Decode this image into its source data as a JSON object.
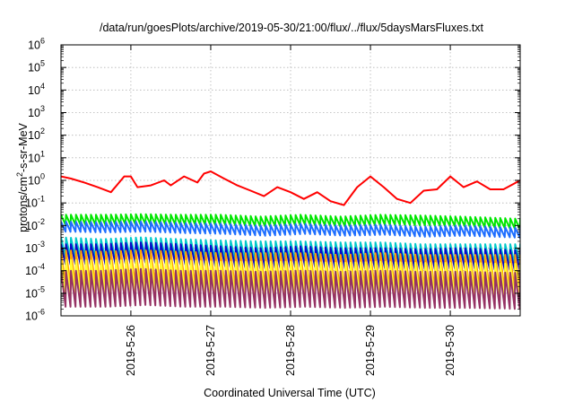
{
  "chart_data": {
    "type": "line",
    "title": "/data/run/goesPlots/archive/2019-05-30/21:00/flux/../flux/5daysMarsFluxes.txt",
    "xlabel": "Coordinated Universal Time (UTC)",
    "ylabel": {
      "base": "protons/cm",
      "sup": "2",
      "rest": "-s-sr-MeV"
    },
    "yscale": "log",
    "ylim": [
      1e-06,
      1000000.0
    ],
    "xlim": [
      "2019-05-25T03:00",
      "2019-05-30T21:00"
    ],
    "grid": true,
    "legend": "none",
    "y_ticks": [
      {
        "value": 1e-06,
        "base": "10",
        "exp": "-6"
      },
      {
        "value": 1e-05,
        "base": "10",
        "exp": "-5"
      },
      {
        "value": 0.0001,
        "base": "10",
        "exp": "-4"
      },
      {
        "value": 0.001,
        "base": "10",
        "exp": "-3"
      },
      {
        "value": 0.01,
        "base": "10",
        "exp": "-2"
      },
      {
        "value": 0.1,
        "base": "10",
        "exp": "-1"
      },
      {
        "value": 1.0,
        "base": "10",
        "exp": "0"
      },
      {
        "value": 10.0,
        "base": "10",
        "exp": "1"
      },
      {
        "value": 100.0,
        "base": "10",
        "exp": "2"
      },
      {
        "value": 1000.0,
        "base": "10",
        "exp": "3"
      },
      {
        "value": 10000.0,
        "base": "10",
        "exp": "4"
      },
      {
        "value": 100000.0,
        "base": "10",
        "exp": "5"
      },
      {
        "value": 1000000.0,
        "base": "10",
        "exp": "6"
      }
    ],
    "x_ticks": [
      {
        "value": "2019-05-26T00:00",
        "label": "2019-5-26"
      },
      {
        "value": "2019-05-27T00:00",
        "label": "2019-5-27"
      },
      {
        "value": "2019-05-28T00:00",
        "label": "2019-5-28"
      },
      {
        "value": "2019-05-29T00:00",
        "label": "2019-5-29"
      },
      {
        "value": "2019-05-30T00:00",
        "label": "2019-5-30"
      }
    ],
    "series": [
      {
        "color": "#ff0000",
        "x": [
          "2019-05-25T03:00",
          "2019-05-25T06:00",
          "2019-05-25T10:00",
          "2019-05-25T14:00",
          "2019-05-25T18:00",
          "2019-05-25T22:00",
          "2019-05-26T00:00",
          "2019-05-26T02:00",
          "2019-05-26T06:00",
          "2019-05-26T10:00",
          "2019-05-26T12:00",
          "2019-05-26T16:00",
          "2019-05-26T20:00",
          "2019-05-26T22:00",
          "2019-05-27T00:00",
          "2019-05-27T04:00",
          "2019-05-27T08:00",
          "2019-05-27T12:00",
          "2019-05-27T16:00",
          "2019-05-27T20:00",
          "2019-05-28T00:00",
          "2019-05-28T04:00",
          "2019-05-28T08:00",
          "2019-05-28T12:00",
          "2019-05-28T16:00",
          "2019-05-28T20:00",
          "2019-05-29T00:00",
          "2019-05-29T04:00",
          "2019-05-29T08:00",
          "2019-05-29T12:00",
          "2019-05-29T16:00",
          "2019-05-29T20:00",
          "2019-05-30T00:00",
          "2019-05-30T04:00",
          "2019-05-30T08:00",
          "2019-05-30T12:00",
          "2019-05-30T16:00",
          "2019-05-30T21:00"
        ],
        "y": [
          1.5,
          1.2,
          0.8,
          0.5,
          0.3,
          1.5,
          1.5,
          0.5,
          0.6,
          1.0,
          0.6,
          1.5,
          0.8,
          2.0,
          2.5,
          1.2,
          0.6,
          0.35,
          0.2,
          0.5,
          0.3,
          0.15,
          0.3,
          0.12,
          0.08,
          0.5,
          1.5,
          0.5,
          0.15,
          0.1,
          0.35,
          0.4,
          1.5,
          0.5,
          0.9,
          0.4,
          0.4,
          1.0
        ]
      },
      {
        "color": "#00e600",
        "x": [
          "2019-05-25T03:00",
          "2019-05-25T15:00",
          "2019-05-26T03:00",
          "2019-05-26T15:00",
          "2019-05-27T03:00",
          "2019-05-27T15:00",
          "2019-05-28T03:00",
          "2019-05-28T15:00",
          "2019-05-29T03:00",
          "2019-05-29T15:00",
          "2019-05-30T03:00",
          "2019-05-30T21:00"
        ],
        "y": [
          0.03,
          0.03,
          0.032,
          0.03,
          0.03,
          0.025,
          0.03,
          0.025,
          0.03,
          0.028,
          0.025,
          0.02
        ]
      },
      {
        "color": "#1e6eff",
        "x": [
          "2019-05-25T03:00",
          "2019-05-25T15:00",
          "2019-05-26T03:00",
          "2019-05-26T15:00",
          "2019-05-27T03:00",
          "2019-05-27T15:00",
          "2019-05-28T03:00",
          "2019-05-28T15:00",
          "2019-05-29T03:00",
          "2019-05-29T15:00",
          "2019-05-30T03:00",
          "2019-05-30T21:00"
        ],
        "y": [
          0.015,
          0.014,
          0.015,
          0.013,
          0.012,
          0.01,
          0.012,
          0.01,
          0.011,
          0.009,
          0.01,
          0.008
        ]
      },
      {
        "color": "#00c8c8",
        "x": [
          "2019-05-25T03:00",
          "2019-05-25T15:00",
          "2019-05-26T03:00",
          "2019-05-26T15:00",
          "2019-05-27T03:00",
          "2019-05-27T15:00",
          "2019-05-28T03:00",
          "2019-05-28T15:00",
          "2019-05-29T03:00",
          "2019-05-29T15:00",
          "2019-05-30T03:00",
          "2019-05-30T21:00"
        ],
        "y": [
          0.003,
          0.0025,
          0.003,
          0.0025,
          0.0022,
          0.002,
          0.002,
          0.0018,
          0.0018,
          0.0015,
          0.0015,
          0.0015
        ]
      },
      {
        "color": "#0a0ac8",
        "x": [
          "2019-05-25T03:00",
          "2019-05-25T15:00",
          "2019-05-26T03:00",
          "2019-05-26T15:00",
          "2019-05-27T03:00",
          "2019-05-27T15:00",
          "2019-05-28T03:00",
          "2019-05-28T15:00",
          "2019-05-29T03:00",
          "2019-05-29T15:00",
          "2019-05-30T03:00",
          "2019-05-30T21:00"
        ],
        "y": [
          0.0015,
          0.0015,
          0.0018,
          0.0015,
          0.0012,
          0.001,
          0.0012,
          0.001,
          0.001,
          0.0009,
          0.001,
          0.0008
        ]
      },
      {
        "color": "#ffa500",
        "x": [
          "2019-05-25T03:00",
          "2019-05-25T15:00",
          "2019-05-26T03:00",
          "2019-05-26T15:00",
          "2019-05-27T03:00",
          "2019-05-27T15:00",
          "2019-05-28T03:00",
          "2019-05-28T15:00",
          "2019-05-29T03:00",
          "2019-05-29T15:00",
          "2019-05-30T03:00",
          "2019-05-30T21:00"
        ],
        "y": [
          0.0008,
          0.0007,
          0.0008,
          0.0007,
          0.0006,
          0.0006,
          0.0006,
          0.0005,
          0.0006,
          0.0005,
          0.0005,
          0.0005
        ]
      },
      {
        "color": "#ffff32",
        "x": [
          "2019-05-25T03:00",
          "2019-05-25T15:00",
          "2019-05-26T03:00",
          "2019-05-26T15:00",
          "2019-05-27T03:00",
          "2019-05-27T15:00",
          "2019-05-28T03:00",
          "2019-05-28T15:00",
          "2019-05-29T03:00",
          "2019-05-29T15:00",
          "2019-05-30T03:00",
          "2019-05-30T21:00"
        ],
        "y": [
          0.0003,
          0.00028,
          0.0003,
          0.00028,
          0.00025,
          0.00025,
          0.00025,
          0.00022,
          0.00025,
          0.00022,
          0.00022,
          0.0002
        ]
      },
      {
        "color": "#963264",
        "x": [
          "2019-05-25T03:00",
          "2019-05-25T15:00",
          "2019-05-26T03:00",
          "2019-05-26T15:00",
          "2019-05-27T03:00",
          "2019-05-27T15:00",
          "2019-05-28T03:00",
          "2019-05-28T15:00",
          "2019-05-29T03:00",
          "2019-05-29T15:00",
          "2019-05-30T03:00",
          "2019-05-30T21:00"
        ],
        "y": [
          0.0001,
          0.0001,
          0.00012,
          0.0001,
          0.0001,
          9e-05,
          0.0001,
          9e-05,
          0.0001,
          9e-05,
          9e-05,
          8e-05
        ]
      }
    ]
  }
}
